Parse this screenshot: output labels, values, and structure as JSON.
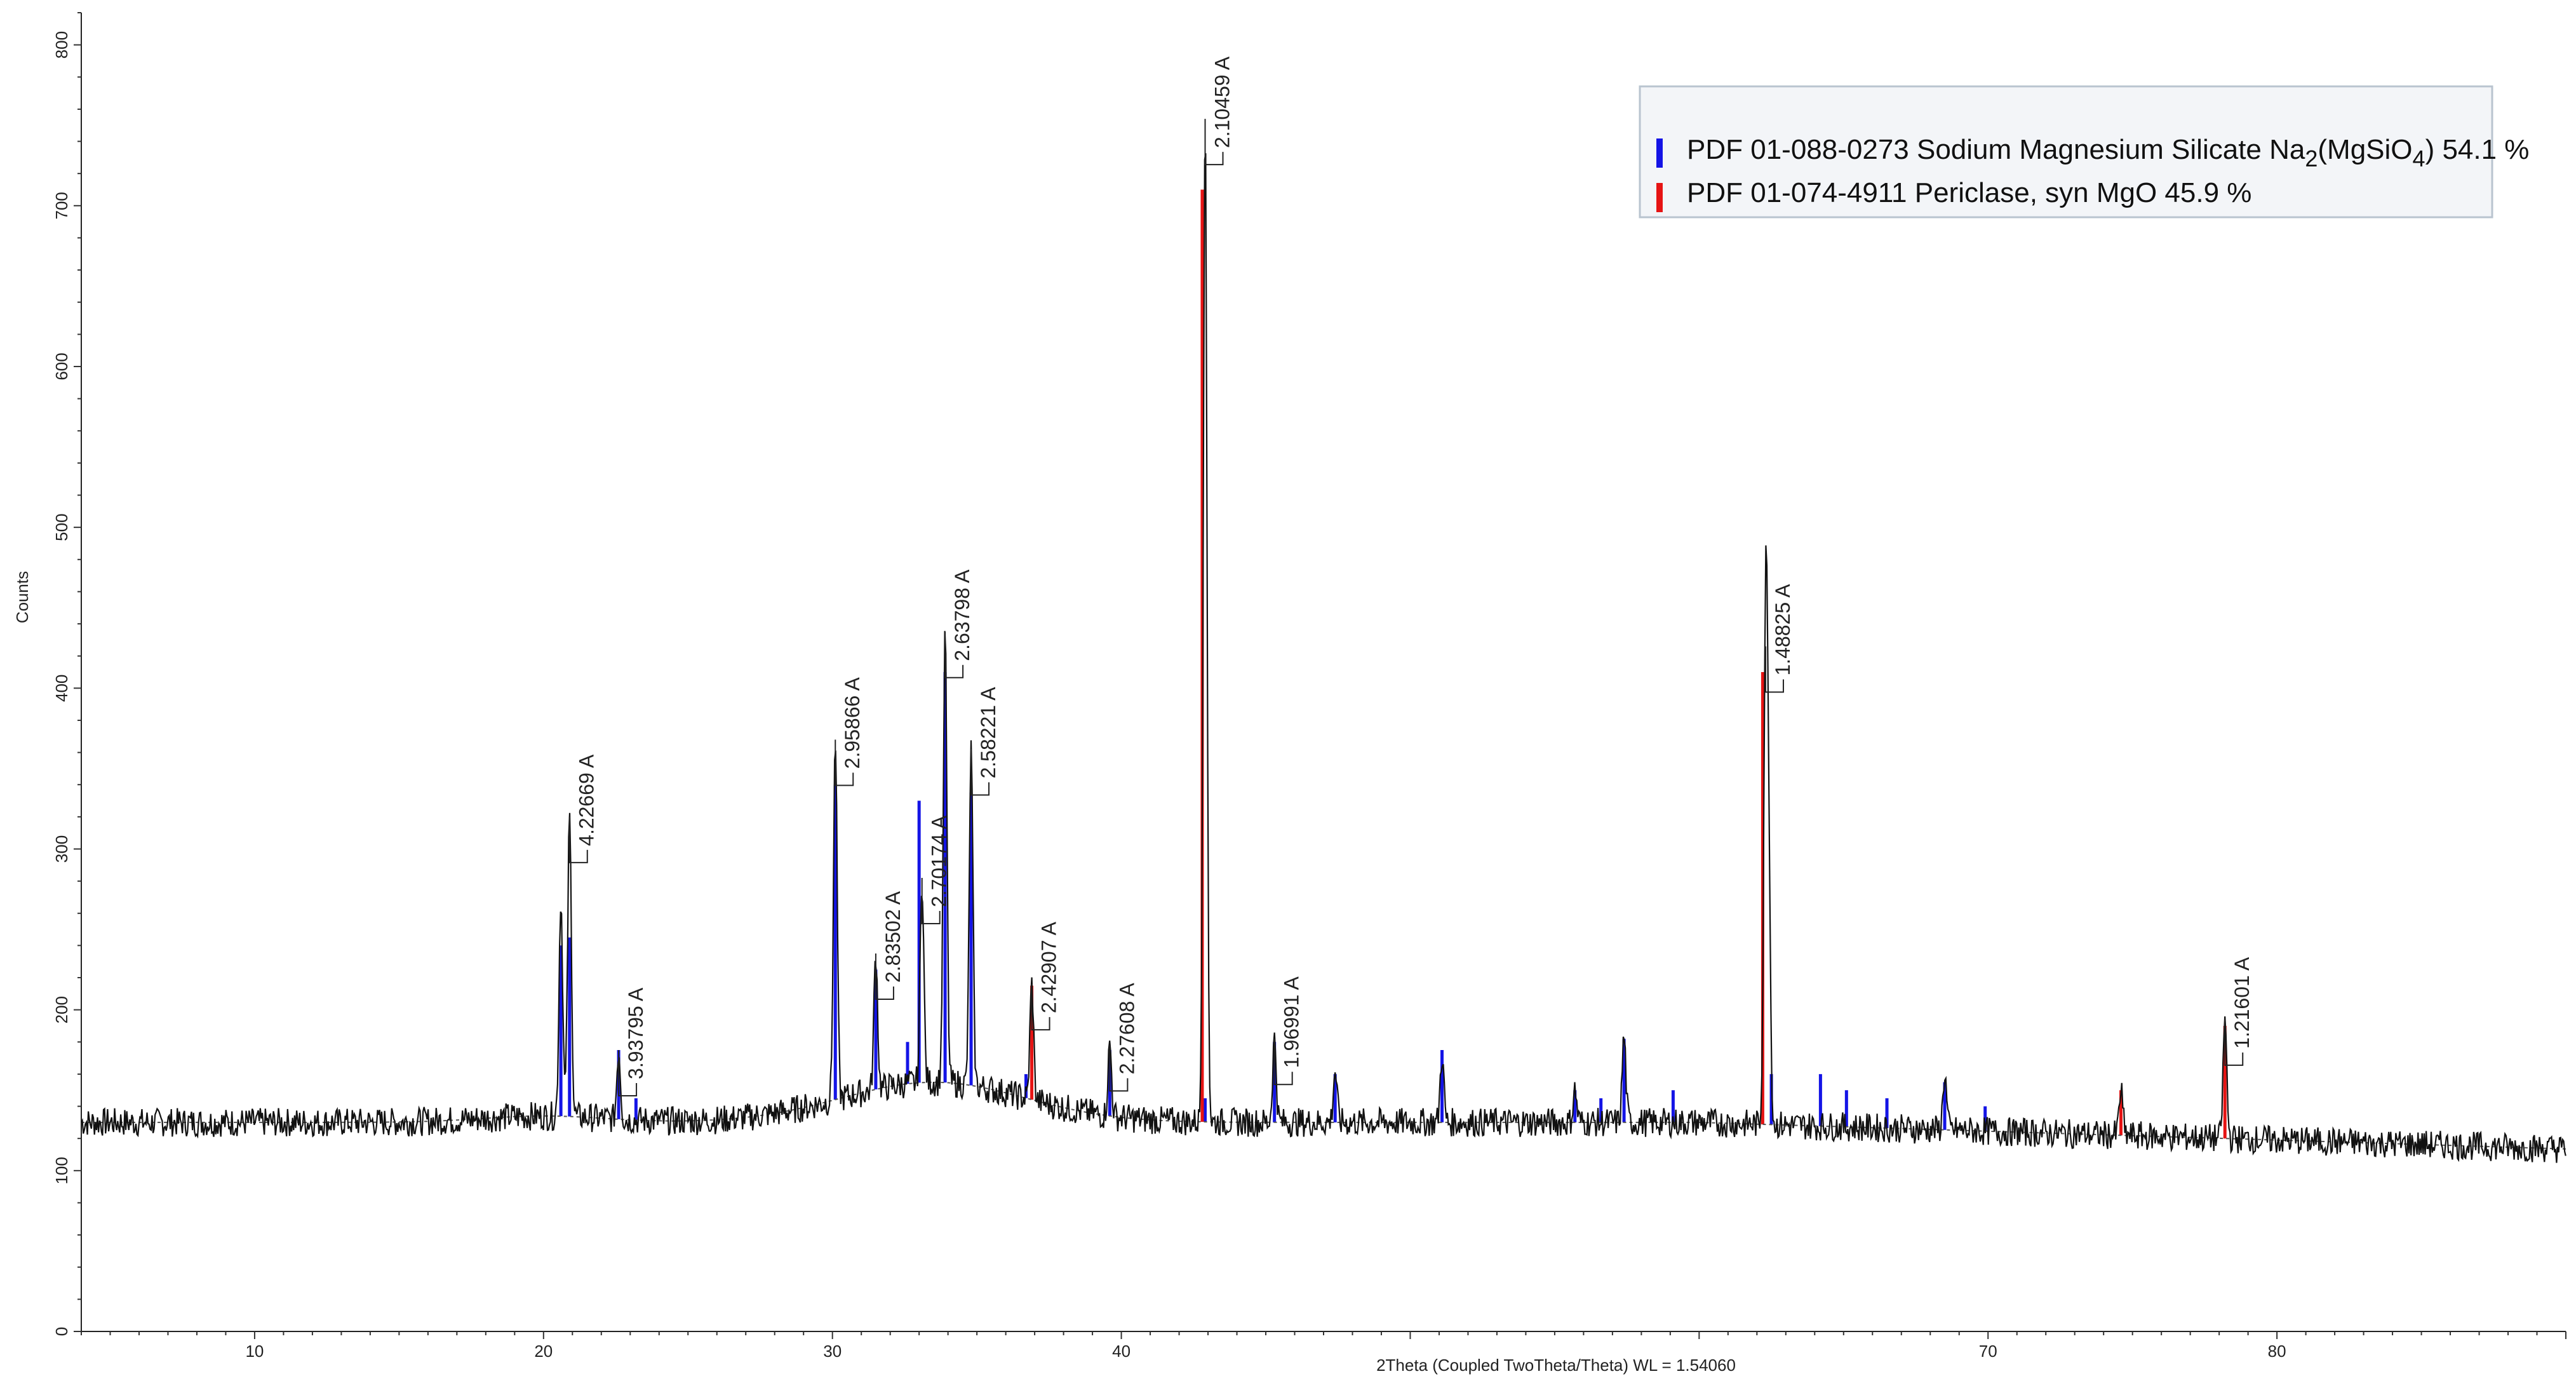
{
  "chart_data": {
    "type": "line",
    "xlabel": "2Theta (Coupled TwoTheta/Theta) WL = 1.54060",
    "ylabel": "Counts",
    "xlim": [
      4,
      90
    ],
    "ylim": [
      0,
      820
    ],
    "x_ticks": [
      10,
      20,
      30,
      40,
      70,
      80
    ],
    "y_ticks": [
      0,
      100,
      200,
      300,
      400,
      500,
      600,
      700,
      800
    ],
    "grid": false,
    "legend_position": "top-right",
    "baseline": 130,
    "legend": [
      {
        "name": "PDF 01-088-0273 Sodium Magnesium  Silicate Na",
        "sub1": "2",
        "mid": "(MgSiO",
        "sub2": "4",
        "tail": ") 54.1 %",
        "color": "#1414e6"
      },
      {
        "name": "PDF 01-074-4911 Periclase, syn MgO 45.9 %",
        "color": "#e61414"
      }
    ],
    "series": [
      {
        "name": "Sodium Magnesium Silicate",
        "color": "#1414e6",
        "x": [
          20.6,
          20.9,
          22.6,
          23.2,
          30.1,
          31.5,
          32.6,
          33.0,
          33.9,
          34.8,
          36.7,
          39.6,
          42.9,
          45.3,
          47.4,
          51.1,
          55.7,
          56.6,
          57.4,
          59.1,
          62.5,
          64.2,
          65.1,
          66.5,
          68.5,
          69.9
        ],
        "y": [
          240,
          245,
          175,
          145,
          340,
          225,
          180,
          330,
          410,
          335,
          160,
          175,
          145,
          180,
          160,
          175,
          150,
          145,
          182,
          150,
          160,
          160,
          150,
          145,
          155,
          140
        ]
      },
      {
        "name": "Periclase, syn MgO",
        "color": "#e61414",
        "x": [
          36.9,
          42.8,
          62.2,
          74.6,
          78.2
        ],
        "y": [
          215,
          710,
          410,
          150,
          190
        ]
      }
    ],
    "measured_peaks": [
      {
        "x": 20.6,
        "y": 270
      },
      {
        "x": 20.9,
        "y": 320,
        "label": "4.22669 A"
      },
      {
        "x": 22.6,
        "y": 175,
        "label": "3.93795 A"
      },
      {
        "x": 30.1,
        "y": 368,
        "label": "2.95866 A"
      },
      {
        "x": 31.5,
        "y": 235,
        "label": "2.83502 A"
      },
      {
        "x": 33.1,
        "y": 282,
        "label": "2.70174 A"
      },
      {
        "x": 33.9,
        "y": 435,
        "label": "2.63798 A"
      },
      {
        "x": 34.8,
        "y": 362,
        "label": "2.58221 A"
      },
      {
        "x": 36.9,
        "y": 216,
        "label": "2.42907 A"
      },
      {
        "x": 39.6,
        "y": 178,
        "label": "2.27608 A"
      },
      {
        "x": 42.9,
        "y": 754,
        "label": "2.10459 A"
      },
      {
        "x": 45.3,
        "y": 182,
        "label": "1.96991 A"
      },
      {
        "x": 47.4,
        "y": 162
      },
      {
        "x": 51.1,
        "y": 172
      },
      {
        "x": 55.7,
        "y": 150
      },
      {
        "x": 57.4,
        "y": 183
      },
      {
        "x": 62.3,
        "y": 426,
        "label": "1.48825 A"
      },
      {
        "x": 62.4,
        "y": 292
      },
      {
        "x": 68.5,
        "y": 160
      },
      {
        "x": 74.6,
        "y": 150
      },
      {
        "x": 78.2,
        "y": 194,
        "label": "1.21601 A"
      }
    ]
  }
}
